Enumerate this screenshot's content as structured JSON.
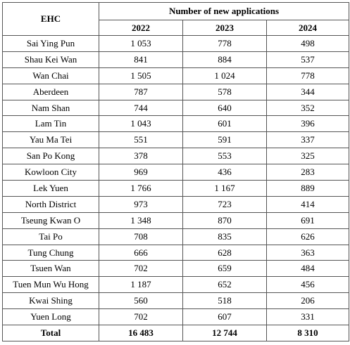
{
  "table": {
    "header": {
      "corner": "EHC",
      "group": "Number of new applications",
      "years": [
        "2022",
        "2023",
        "2024"
      ]
    },
    "rows": [
      [
        "Sai Ying Pun",
        "1 053",
        "778",
        "498"
      ],
      [
        "Shau Kei Wan",
        "841",
        "884",
        "537"
      ],
      [
        "Wan Chai",
        "1 505",
        "1 024",
        "778"
      ],
      [
        "Aberdeen",
        "787",
        "578",
        "344"
      ],
      [
        "Nam Shan",
        "744",
        "640",
        "352"
      ],
      [
        "Lam Tin",
        "1 043",
        "601",
        "396"
      ],
      [
        "Yau Ma Tei",
        "551",
        "591",
        "337"
      ],
      [
        "San Po Kong",
        "378",
        "553",
        "325"
      ],
      [
        "Kowloon City",
        "969",
        "436",
        "283"
      ],
      [
        "Lek Yuen",
        "1 766",
        "1 167",
        "889"
      ],
      [
        "North District",
        "973",
        "723",
        "414"
      ],
      [
        "Tseung Kwan O",
        "1 348",
        "870",
        "691"
      ],
      [
        "Tai Po",
        "708",
        "835",
        "626"
      ],
      [
        "Tung Chung",
        "666",
        "628",
        "363"
      ],
      [
        "Tsuen Wan",
        "702",
        "659",
        "484"
      ],
      [
        "Tuen Mun Wu Hong",
        "1 187",
        "652",
        "456"
      ],
      [
        "Kwai Shing",
        "560",
        "518",
        "206"
      ],
      [
        "Yuen Long",
        "702",
        "607",
        "331"
      ]
    ],
    "total": [
      "Total",
      "16 483",
      "12 744",
      "8 310"
    ]
  }
}
